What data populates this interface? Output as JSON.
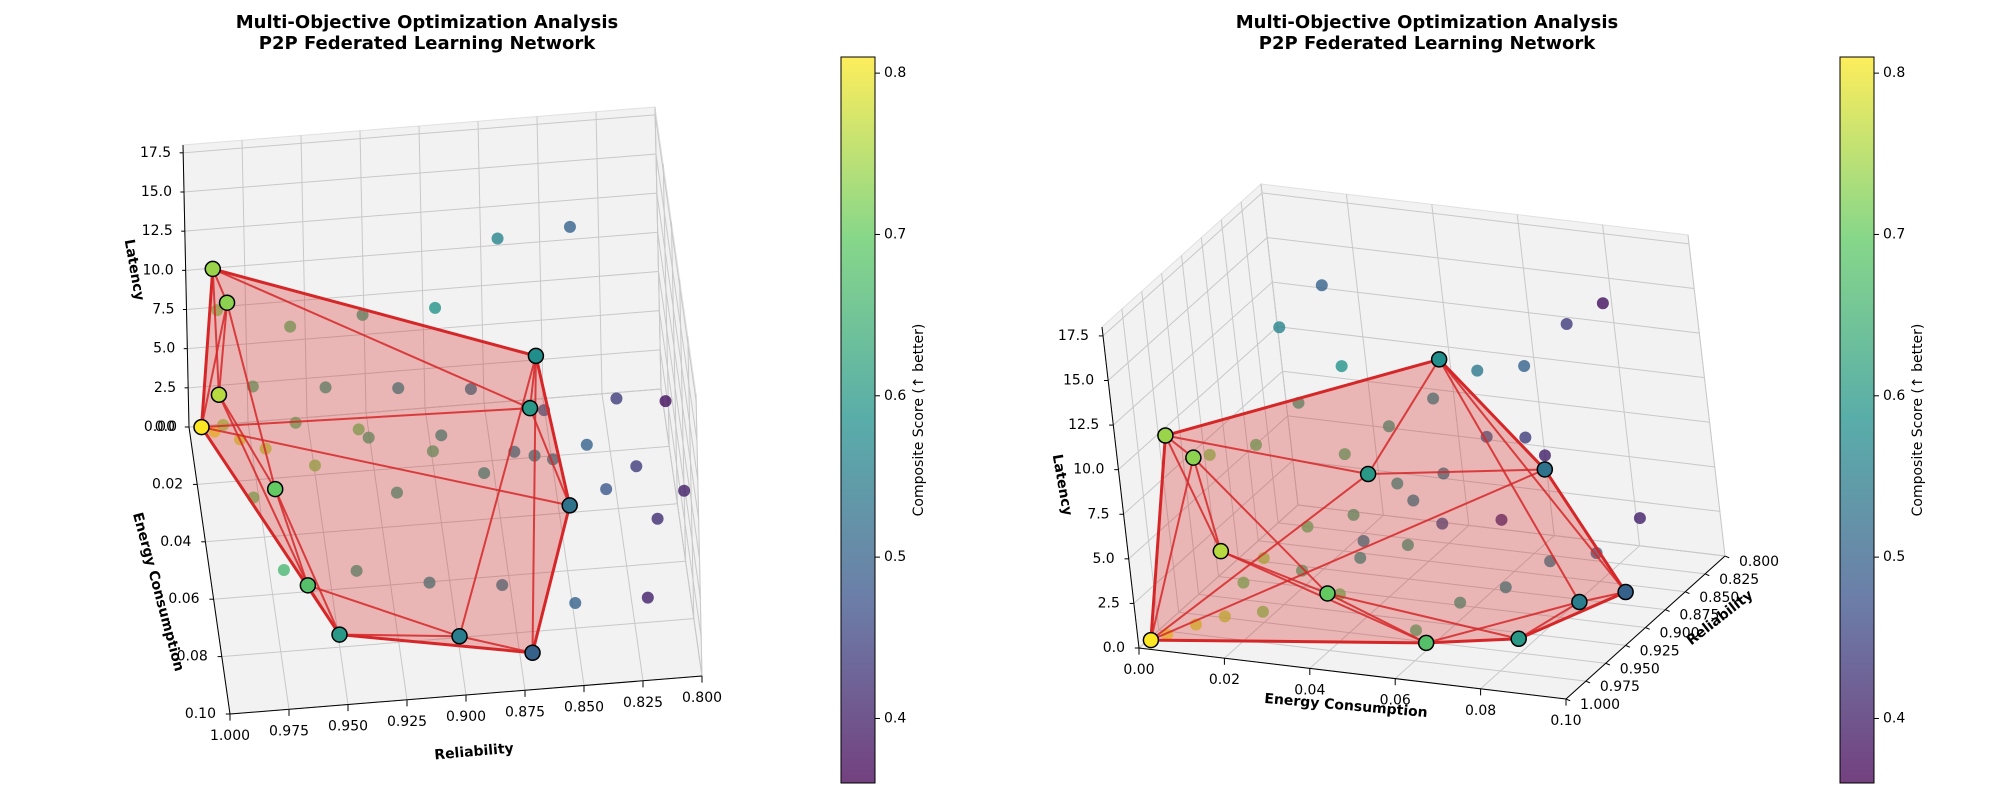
{
  "chart_data": [
    {
      "type": "scatter3d",
      "title": "Multi-Objective Optimization Analysis",
      "subtitle": "P2P Federated Learning Network",
      "xlabel": "Reliability",
      "ylabel": "Energy Consumption",
      "zlabel": "Latency",
      "colorbar_label": "Composite Score (↑ better)",
      "xlim": [
        0.8,
        1.0
      ],
      "xticks": [
        {
          "value": 0.8,
          "label": "0.800"
        },
        {
          "value": 0.825,
          "label": "0.825"
        },
        {
          "value": 0.85,
          "label": "0.850"
        },
        {
          "value": 0.875,
          "label": "0.875"
        },
        {
          "value": 0.9,
          "label": "0.900"
        },
        {
          "value": 0.925,
          "label": "0.925"
        },
        {
          "value": 0.95,
          "label": "0.950"
        },
        {
          "value": 0.975,
          "label": "0.975"
        },
        {
          "value": 1.0,
          "label": "1.000"
        }
      ],
      "ylim": [
        0,
        0.1
      ],
      "yticks": [
        {
          "value": 0,
          "label": "0.00"
        },
        {
          "value": 0.02,
          "label": "0.02"
        },
        {
          "value": 0.04,
          "label": "0.04"
        },
        {
          "value": 0.06,
          "label": "0.06"
        },
        {
          "value": 0.08,
          "label": "0.08"
        },
        {
          "value": 0.1,
          "label": "0.10"
        }
      ],
      "zlim": [
        0,
        18
      ],
      "zticks": [
        {
          "value": 0,
          "label": "0.0"
        },
        2.5,
        {
          "value": 5,
          "label": "5.0"
        },
        7.5,
        {
          "value": 10,
          "label": "10.0"
        },
        12.5,
        {
          "value": 15,
          "label": "15.0"
        },
        17.5
      ],
      "clim": [
        0.36,
        0.81
      ],
      "cticks": [
        0.4,
        0.5,
        0.6,
        0.7,
        0.8
      ],
      "colormap": "viridis",
      "hull_color": "#d62728",
      "grid": true,
      "points": {
        "x": [
          0.99,
          0.98,
          0.97,
          0.95,
          0.93,
          0.9,
          0.88,
          0.85,
          0.83,
          0.81,
          0.99,
          0.96,
          0.93,
          0.9,
          0.87,
          0.84,
          0.82,
          0.98,
          0.95,
          0.92,
          0.89,
          0.86,
          0.83,
          0.81,
          0.97,
          0.94,
          0.91,
          0.88,
          0.85,
          0.82,
          0.99,
          0.96,
          0.93,
          0.9,
          0.87,
          0.84,
          0.98,
          0.92,
          0.86,
          0.8
        ],
        "y": [
          0.005,
          0.01,
          0.015,
          0.02,
          0.012,
          0.02,
          0.03,
          0.025,
          0.04,
          0.05,
          0.03,
          0.035,
          0.04,
          0.045,
          0.05,
          0.055,
          0.06,
          0.05,
          0.055,
          0.06,
          0.065,
          0.07,
          0.075,
          0.08,
          0.06,
          0.065,
          0.07,
          0.075,
          0.08,
          0.085,
          0.02,
          0.025,
          0.03,
          0.035,
          0.015,
          0.02,
          0.045,
          0.05,
          0.04,
          0.06
        ],
        "z": [
          0.5,
          0.8,
          1.0,
          0.6,
          1.2,
          0.9,
          1.1,
          0.7,
          1.3,
          1.0,
          5.5,
          6.2,
          5.8,
          6.5,
          6.0,
          7.0,
          6.3,
          11.5,
          12.0,
          12.5,
          13.0,
          12.2,
          13.5,
          14.0,
          1.5,
          2.0,
          1.8,
          2.2,
          1.6,
          2.5,
          11.0,
          10.5,
          11.8,
          12.8,
          13.2,
          14.5,
          3.5,
          4.0,
          3.8,
          4.5
        ],
        "c": [
          0.8,
          0.78,
          0.76,
          0.72,
          0.7,
          0.65,
          0.6,
          0.55,
          0.48,
          0.42,
          0.74,
          0.68,
          0.64,
          0.6,
          0.55,
          0.5,
          0.44,
          0.66,
          0.62,
          0.58,
          0.54,
          0.5,
          0.44,
          0.38,
          0.66,
          0.62,
          0.58,
          0.55,
          0.5,
          0.4,
          0.72,
          0.68,
          0.63,
          0.59,
          0.56,
          0.5,
          0.7,
          0.62,
          0.56,
          0.4
        ]
      },
      "pareto": {
        "x": [
          0.995,
          0.99,
          0.985,
          0.99,
          0.97,
          0.96,
          0.95,
          0.9,
          0.87,
          0.86,
          0.85,
          0.86
        ],
        "y": [
          0.002,
          0.01,
          0.015,
          0.02,
          0.04,
          0.06,
          0.08,
          0.085,
          0.09,
          0.05,
          0.07,
          0.03
        ],
        "z": [
          0.3,
          11.8,
          10.5,
          5.6,
          3.0,
          0.4,
          0.8,
          1.0,
          0.5,
          12.0,
          6.0,
          5.0
        ],
        "c": [
          0.81,
          0.74,
          0.73,
          0.76,
          0.7,
          0.68,
          0.6,
          0.55,
          0.5,
          0.58,
          0.53,
          0.6
        ]
      }
    },
    {
      "type": "scatter3d",
      "title": "Multi-Objective Optimization Analysis",
      "subtitle": "P2P Federated Learning Network",
      "xlabel": "Reliability",
      "ylabel": "Energy Consumption",
      "zlabel": "Latency",
      "colorbar_label": "Composite Score (↑ better)",
      "xlim": [
        0.8,
        1.0
      ],
      "xticks": [
        {
          "value": 0.8,
          "label": "0.800"
        },
        {
          "value": 0.825,
          "label": "0.825"
        },
        {
          "value": 0.85,
          "label": "0.850"
        },
        {
          "value": 0.875,
          "label": "0.875"
        },
        {
          "value": 0.9,
          "label": "0.900"
        },
        {
          "value": 0.925,
          "label": "0.925"
        },
        {
          "value": 0.95,
          "label": "0.950"
        },
        {
          "value": 0.975,
          "label": "0.975"
        },
        {
          "value": 1.0,
          "label": "1.000"
        }
      ],
      "ylim": [
        0,
        0.1
      ],
      "yticks": [
        {
          "value": 0,
          "label": "0.00"
        },
        {
          "value": 0.02,
          "label": "0.02"
        },
        {
          "value": 0.04,
          "label": "0.04"
        },
        {
          "value": 0.06,
          "label": "0.06"
        },
        {
          "value": 0.08,
          "label": "0.08"
        },
        {
          "value": 0.1,
          "label": "0.10"
        }
      ],
      "zlim": [
        0,
        18
      ],
      "zticks": [
        {
          "value": 0,
          "label": "0.0"
        },
        2.5,
        {
          "value": 5,
          "label": "5.0"
        },
        7.5,
        {
          "value": 10,
          "label": "10.0"
        },
        12.5,
        {
          "value": 15,
          "label": "15.0"
        },
        17.5
      ],
      "clim": [
        0.36,
        0.81
      ],
      "cticks": [
        0.4,
        0.5,
        0.6,
        0.7,
        0.8
      ],
      "colormap": "viridis",
      "hull_color": "#d62728",
      "grid": true,
      "points": {
        "x": [
          0.99,
          0.98,
          0.97,
          0.95,
          0.93,
          0.9,
          0.88,
          0.85,
          0.83,
          0.81,
          0.99,
          0.96,
          0.93,
          0.9,
          0.87,
          0.84,
          0.82,
          0.98,
          0.95,
          0.92,
          0.89,
          0.86,
          0.83,
          0.81,
          0.97,
          0.94,
          0.91,
          0.88,
          0.85,
          0.82,
          0.99,
          0.96,
          0.93,
          0.9,
          0.87,
          0.84,
          0.98,
          0.92,
          0.86,
          0.8
        ],
        "y": [
          0.005,
          0.01,
          0.015,
          0.02,
          0.012,
          0.02,
          0.03,
          0.025,
          0.04,
          0.05,
          0.03,
          0.035,
          0.04,
          0.045,
          0.05,
          0.055,
          0.06,
          0.05,
          0.055,
          0.06,
          0.065,
          0.07,
          0.075,
          0.08,
          0.06,
          0.065,
          0.07,
          0.075,
          0.08,
          0.085,
          0.02,
          0.025,
          0.03,
          0.035,
          0.015,
          0.02,
          0.045,
          0.05,
          0.04,
          0.06
        ],
        "z": [
          0.5,
          0.8,
          1.0,
          0.6,
          1.2,
          0.9,
          1.1,
          0.7,
          1.3,
          1.0,
          5.5,
          6.2,
          5.8,
          6.5,
          6.0,
          7.0,
          6.3,
          11.5,
          12.0,
          12.5,
          13.0,
          12.2,
          13.5,
          14.0,
          1.5,
          2.0,
          1.8,
          2.2,
          1.6,
          2.5,
          11.0,
          10.5,
          11.8,
          12.8,
          13.2,
          14.5,
          3.5,
          4.0,
          3.8,
          4.5
        ],
        "c": [
          0.8,
          0.78,
          0.76,
          0.72,
          0.7,
          0.65,
          0.6,
          0.55,
          0.48,
          0.42,
          0.74,
          0.68,
          0.64,
          0.6,
          0.55,
          0.5,
          0.44,
          0.66,
          0.62,
          0.58,
          0.54,
          0.5,
          0.44,
          0.38,
          0.66,
          0.62,
          0.58,
          0.55,
          0.5,
          0.4,
          0.72,
          0.68,
          0.63,
          0.59,
          0.56,
          0.5,
          0.7,
          0.62,
          0.56,
          0.4
        ]
      },
      "pareto": {
        "x": [
          0.995,
          0.99,
          0.985,
          0.99,
          0.97,
          0.96,
          0.95,
          0.9,
          0.87,
          0.86,
          0.85,
          0.86
        ],
        "y": [
          0.002,
          0.01,
          0.015,
          0.02,
          0.04,
          0.06,
          0.08,
          0.085,
          0.09,
          0.05,
          0.07,
          0.03
        ],
        "z": [
          0.3,
          11.8,
          10.5,
          5.6,
          3.0,
          0.4,
          0.8,
          1.0,
          0.5,
          12.0,
          6.0,
          5.0
        ],
        "c": [
          0.81,
          0.74,
          0.73,
          0.76,
          0.7,
          0.68,
          0.6,
          0.55,
          0.5,
          0.58,
          0.53,
          0.6
        ]
      }
    }
  ]
}
